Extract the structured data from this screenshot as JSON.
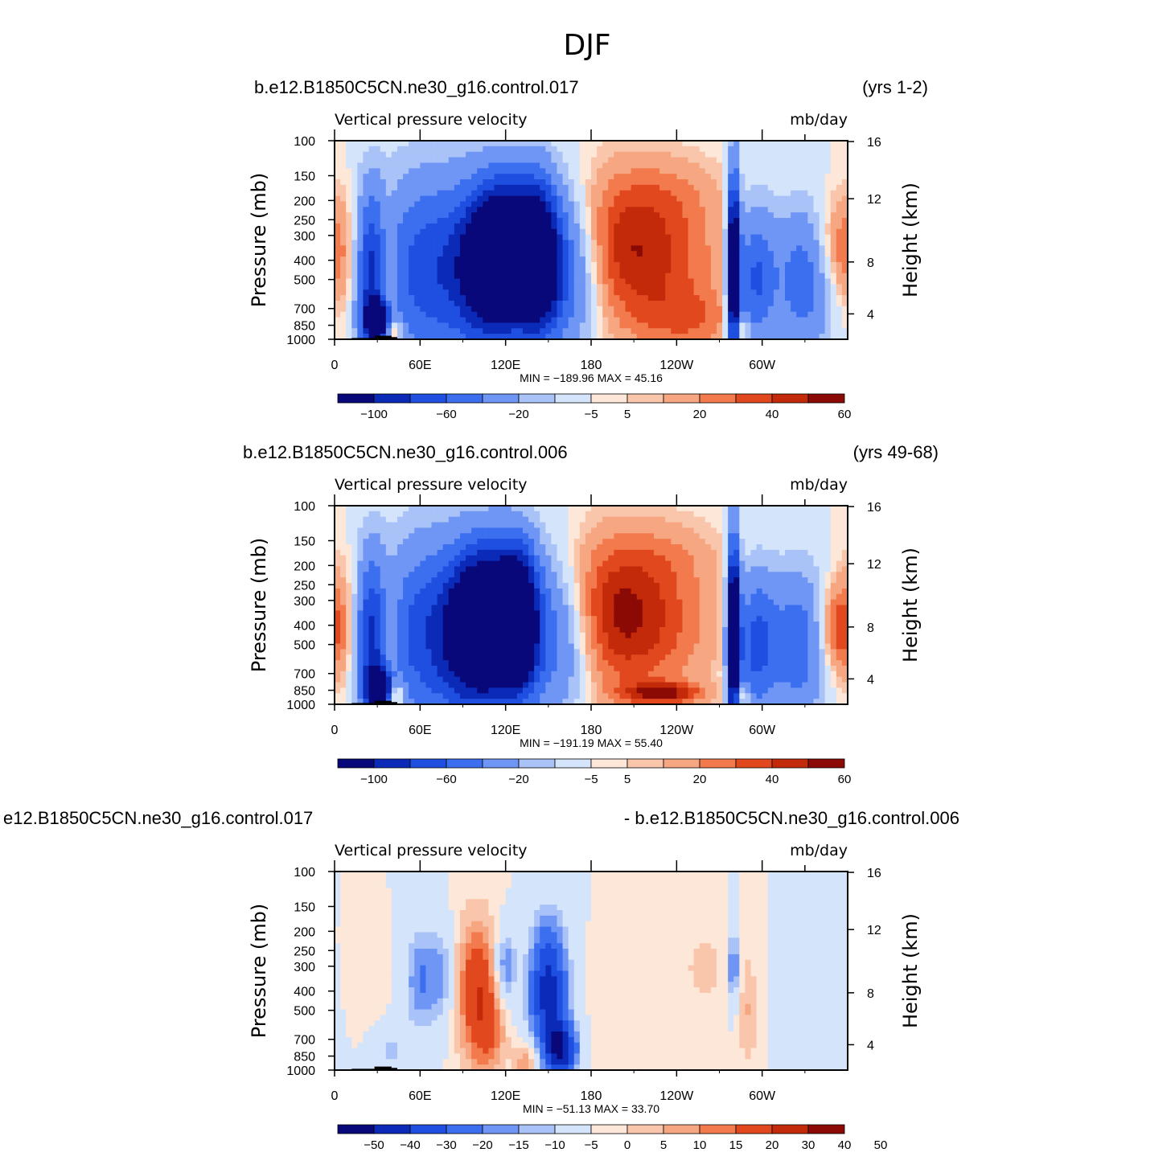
{
  "figure_title": "DJF",
  "colors": {
    "levels_full": [
      "#08087a",
      "#0b2ab8",
      "#1e4fe0",
      "#3b6ff0",
      "#6f96f5",
      "#a9c2f7",
      "#d4e4fb",
      "#fde7d8",
      "#f9c6ac",
      "#f6a680",
      "#f27a4d",
      "#e2481e",
      "#c32a0a",
      "#8b0a05"
    ],
    "levels_diff": [
      "#08087a",
      "#0b2ab8",
      "#1e4fe0",
      "#3b6ff0",
      "#6f96f5",
      "#a9c2f7",
      "#d4e4fb",
      "#fde7d8",
      "#f9c6ac",
      "#f6a680",
      "#f27a4d",
      "#e2481e",
      "#c32a0a",
      "#8b0a05"
    ]
  },
  "panels": [
    {
      "left_title": "b.e12.B1850C5CN.ne30_g16.control.017",
      "right_title": "(yrs 1-2)",
      "variable_label": "Vertical pressure velocity",
      "units_label": "mb/day",
      "y_title": "Pressure (mb)",
      "y2_title": "Height (km)",
      "minmax": "MIN = −189.96   MAX =   45.16",
      "cb_labels": [
        "−100",
        "−60",
        "−20",
        "−5",
        "5",
        "20",
        "40",
        "60"
      ]
    },
    {
      "left_title": "b.e12.B1850C5CN.ne30_g16.control.006",
      "right_title": "(yrs 49-68)",
      "variable_label": "Vertical pressure velocity",
      "units_label": "mb/day",
      "y_title": "Pressure (mb)",
      "y2_title": "Height (km)",
      "minmax": "MIN = −191.19   MAX =   55.40",
      "cb_labels": [
        "−100",
        "−60",
        "−20",
        "−5",
        "5",
        "20",
        "40",
        "60"
      ]
    },
    {
      "left_title": "e12.B1850C5CN.ne30_g16.control.017",
      "right_title": "- b.e12.B1850C5CN.ne30_g16.control.006",
      "variable_label": "Vertical pressure velocity",
      "units_label": "mb/day",
      "y_title": "Pressure (mb)",
      "y2_title": "Height (km)",
      "minmax": "MIN = −51.13   MAX =   33.70",
      "cb_labels": [
        "−50",
        "−40",
        "−30",
        "−20",
        "−15",
        "−10",
        "−5",
        "0",
        "5",
        "10",
        "15",
        "20",
        "30",
        "40",
        "50"
      ]
    }
  ],
  "chart_data": [
    {
      "type": "heatmap",
      "title": "DJF",
      "subtitle": "b.e12.B1850C5CN.ne30_g16.control.017 (yrs 1-2)",
      "variable": "Vertical pressure velocity",
      "units": "mb/day",
      "xlabel": "",
      "ylabel": "Pressure (mb)",
      "y2label": "Height (km)",
      "x_ticklabels": [
        "0",
        "60E",
        "120E",
        "180",
        "120W",
        "60W"
      ],
      "y_ticklabels": [
        "100",
        "150",
        "200",
        "250",
        "300",
        "400",
        "500",
        "700",
        "850",
        "1000"
      ],
      "y2_ticklabels": [
        "16",
        "12",
        "8",
        "4"
      ],
      "xlim": [
        0,
        360
      ],
      "ylim": [
        1000,
        100
      ],
      "y_scale": "log",
      "min": -189.96,
      "max": 45.16,
      "colorbar_levels": [
        -120,
        -100,
        -80,
        -60,
        -40,
        -20,
        -10,
        -5,
        0,
        5,
        10,
        20,
        30,
        40,
        50,
        60,
        70
      ],
      "colorbar_ticklabels": [
        "−100",
        "−60",
        "−20",
        "−5",
        "5",
        "20",
        "40",
        "60"
      ]
    },
    {
      "type": "heatmap",
      "subtitle": "b.e12.B1850C5CN.ne30_g16.control.006 (yrs 49-68)",
      "variable": "Vertical pressure velocity",
      "units": "mb/day",
      "ylabel": "Pressure (mb)",
      "y2label": "Height (km)",
      "x_ticklabels": [
        "0",
        "60E",
        "120E",
        "180",
        "120W",
        "60W"
      ],
      "y_ticklabels": [
        "100",
        "150",
        "200",
        "250",
        "300",
        "400",
        "500",
        "700",
        "850",
        "1000"
      ],
      "y2_ticklabels": [
        "16",
        "12",
        "8",
        "4"
      ],
      "xlim": [
        0,
        360
      ],
      "ylim": [
        1000,
        100
      ],
      "y_scale": "log",
      "min": -191.19,
      "max": 55.4,
      "colorbar_ticklabels": [
        "−100",
        "−60",
        "−20",
        "−5",
        "5",
        "20",
        "40",
        "60"
      ]
    },
    {
      "type": "heatmap",
      "subtitle": "e12.B1850C5CN.ne30_g16.control.017 - b.e12.B1850C5CN.ne30_g16.control.006",
      "variable": "Vertical pressure velocity",
      "units": "mb/day",
      "ylabel": "Pressure (mb)",
      "y2label": "Height (km)",
      "x_ticklabels": [
        "0",
        "60E",
        "120E",
        "180",
        "120W",
        "60W"
      ],
      "y_ticklabels": [
        "100",
        "150",
        "200",
        "250",
        "300",
        "400",
        "500",
        "700",
        "850",
        "1000"
      ],
      "y2_ticklabels": [
        "16",
        "12",
        "8",
        "4"
      ],
      "xlim": [
        0,
        360
      ],
      "ylim": [
        1000,
        100
      ],
      "y_scale": "log",
      "min": -51.13,
      "max": 33.7,
      "colorbar_ticklabels": [
        "−50",
        "−40",
        "−30",
        "−20",
        "−15",
        "−10",
        "−5",
        "0",
        "5",
        "10",
        "15",
        "20",
        "30",
        "40",
        "50"
      ]
    }
  ]
}
